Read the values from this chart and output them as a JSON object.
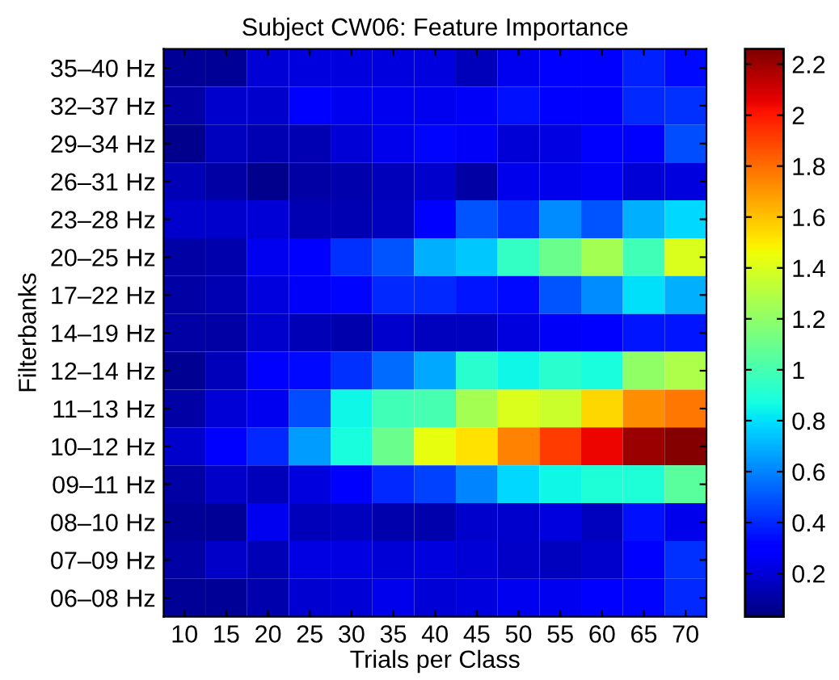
{
  "chart_data": {
    "type": "heatmap",
    "title": "Subject CW06: Feature Importance",
    "xlabel": "Trials per Class",
    "ylabel": "Filterbanks",
    "categories": [
      "10",
      "15",
      "20",
      "25",
      "30",
      "35",
      "40",
      "45",
      "50",
      "55",
      "60",
      "65",
      "70"
    ],
    "y_categories": [
      "35–40 Hz",
      "32–37 Hz",
      "29–34 Hz",
      "26–31 Hz",
      "23–28 Hz",
      "20–25 Hz",
      "17–22 Hz",
      "14–19 Hz",
      "12–14 Hz",
      "11–13 Hz",
      "10–12 Hz",
      "09–11 Hz",
      "08–10 Hz",
      "07–09 Hz",
      "06–08 Hz"
    ],
    "cells": [
      [
        0.08,
        0.08,
        0.2,
        0.22,
        0.22,
        0.22,
        0.22,
        0.15,
        0.25,
        0.3,
        0.3,
        0.38,
        0.33
      ],
      [
        0.1,
        0.18,
        0.18,
        0.3,
        0.25,
        0.25,
        0.25,
        0.27,
        0.35,
        0.3,
        0.3,
        0.4,
        0.42
      ],
      [
        0.06,
        0.16,
        0.13,
        0.13,
        0.2,
        0.24,
        0.32,
        0.27,
        0.2,
        0.23,
        0.28,
        0.3,
        0.48
      ],
      [
        0.14,
        0.1,
        0.06,
        0.1,
        0.12,
        0.15,
        0.18,
        0.1,
        0.24,
        0.24,
        0.26,
        0.2,
        0.22
      ],
      [
        0.18,
        0.18,
        0.2,
        0.13,
        0.13,
        0.16,
        0.3,
        0.5,
        0.42,
        0.62,
        0.5,
        0.7,
        0.78
      ],
      [
        0.1,
        0.12,
        0.25,
        0.3,
        0.42,
        0.5,
        0.7,
        0.75,
        0.95,
        1.1,
        1.25,
        0.98,
        1.4
      ],
      [
        0.1,
        0.13,
        0.22,
        0.27,
        0.32,
        0.4,
        0.4,
        0.36,
        0.33,
        0.5,
        0.62,
        0.8,
        0.7
      ],
      [
        0.1,
        0.1,
        0.18,
        0.14,
        0.12,
        0.18,
        0.16,
        0.16,
        0.22,
        0.27,
        0.3,
        0.36,
        0.36
      ],
      [
        0.07,
        0.15,
        0.3,
        0.33,
        0.42,
        0.55,
        0.68,
        0.92,
        0.85,
        0.92,
        0.88,
        1.2,
        1.28
      ],
      [
        0.1,
        0.2,
        0.25,
        0.48,
        0.85,
        0.98,
        1.0,
        1.25,
        1.4,
        1.36,
        1.55,
        1.72,
        1.78
      ],
      [
        0.18,
        0.3,
        0.4,
        0.65,
        0.88,
        1.1,
        1.44,
        1.52,
        1.75,
        1.92,
        2.05,
        2.2,
        2.25
      ],
      [
        0.1,
        0.17,
        0.15,
        0.22,
        0.3,
        0.4,
        0.45,
        0.6,
        0.78,
        0.85,
        0.9,
        0.9,
        1.05
      ],
      [
        0.08,
        0.08,
        0.25,
        0.15,
        0.16,
        0.12,
        0.12,
        0.18,
        0.18,
        0.22,
        0.16,
        0.35,
        0.24
      ],
      [
        0.1,
        0.17,
        0.14,
        0.23,
        0.23,
        0.2,
        0.22,
        0.2,
        0.17,
        0.16,
        0.18,
        0.3,
        0.42
      ],
      [
        0.08,
        0.08,
        0.12,
        0.19,
        0.2,
        0.24,
        0.2,
        0.22,
        0.25,
        0.25,
        0.28,
        0.32,
        0.4
      ]
    ],
    "clim": [
      0.03,
      2.26
    ],
    "cticks": [
      0.2,
      0.4,
      0.6,
      0.8,
      1,
      1.2,
      1.4,
      1.6,
      1.8,
      2,
      2.2
    ]
  }
}
